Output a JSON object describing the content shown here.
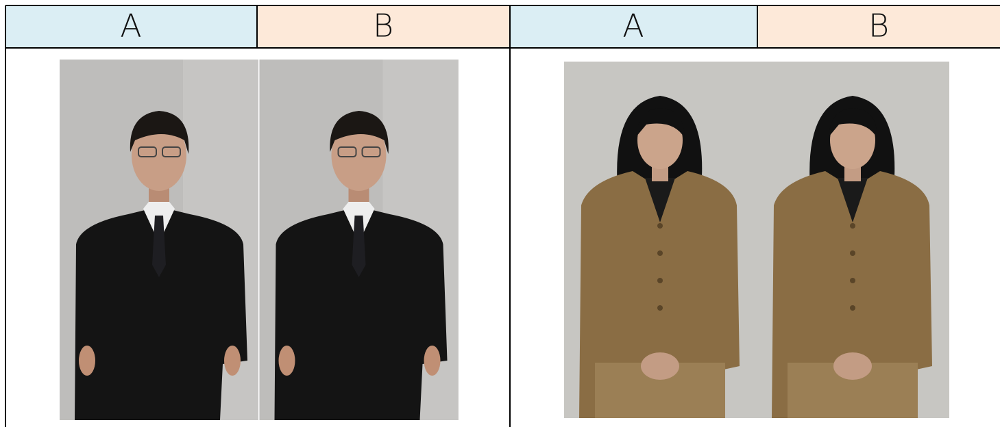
{
  "table": {
    "header": [
      "A",
      "B",
      "A",
      "B"
    ]
  }
}
